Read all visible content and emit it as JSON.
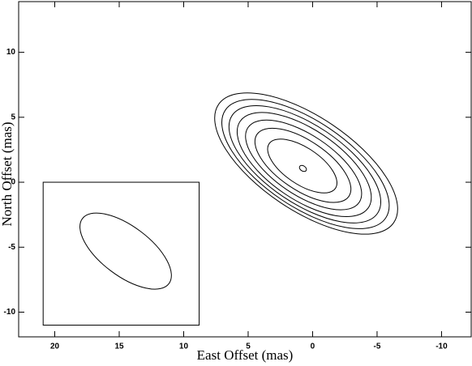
{
  "chart_data": {
    "type": "contour",
    "x_label": "East Offset (mas)",
    "y_label": "North Offset (mas)",
    "xlim": [
      22.8,
      -12.3
    ],
    "ylim": [
      -11.9,
      13.9
    ],
    "xticks": [
      20,
      15,
      10,
      5,
      0,
      -5,
      -10
    ],
    "yticks": [
      -10,
      -5,
      0,
      5,
      10
    ],
    "color": "#000000",
    "contours": [
      {
        "center": [
          0.75,
          1.06
        ],
        "semi_major": 0.3,
        "semi_minor": 0.2,
        "angle": 34
      },
      {
        "center": [
          0.8,
          1.25
        ],
        "semi_major": 3.1,
        "semi_minor": 1.4,
        "angle": 34
      },
      {
        "center": [
          0.75,
          1.3
        ],
        "semi_major": 4.3,
        "semi_minor": 1.9,
        "angle": 34
      },
      {
        "center": [
          0.7,
          1.33
        ],
        "semi_major": 5.2,
        "semi_minor": 2.3,
        "angle": 34
      },
      {
        "center": [
          0.65,
          1.36
        ],
        "semi_major": 6.0,
        "semi_minor": 2.7,
        "angle": 34
      },
      {
        "center": [
          0.6,
          1.38
        ],
        "semi_major": 6.8,
        "semi_minor": 3.0,
        "angle": 34
      },
      {
        "center": [
          0.55,
          1.4
        ],
        "semi_major": 7.5,
        "semi_minor": 3.3,
        "angle": 34
      },
      {
        "center": [
          0.5,
          1.44
        ],
        "semi_major": 8.2,
        "semi_minor": 3.6,
        "angle": 34
      }
    ],
    "beam_box": {
      "x": [
        20.9,
        8.8
      ],
      "y": [
        0,
        -11
      ]
    },
    "beam": {
      "center": [
        14.5,
        -5.3
      ],
      "semi_major": 4.2,
      "semi_minor": 1.9,
      "angle": 37
    }
  }
}
